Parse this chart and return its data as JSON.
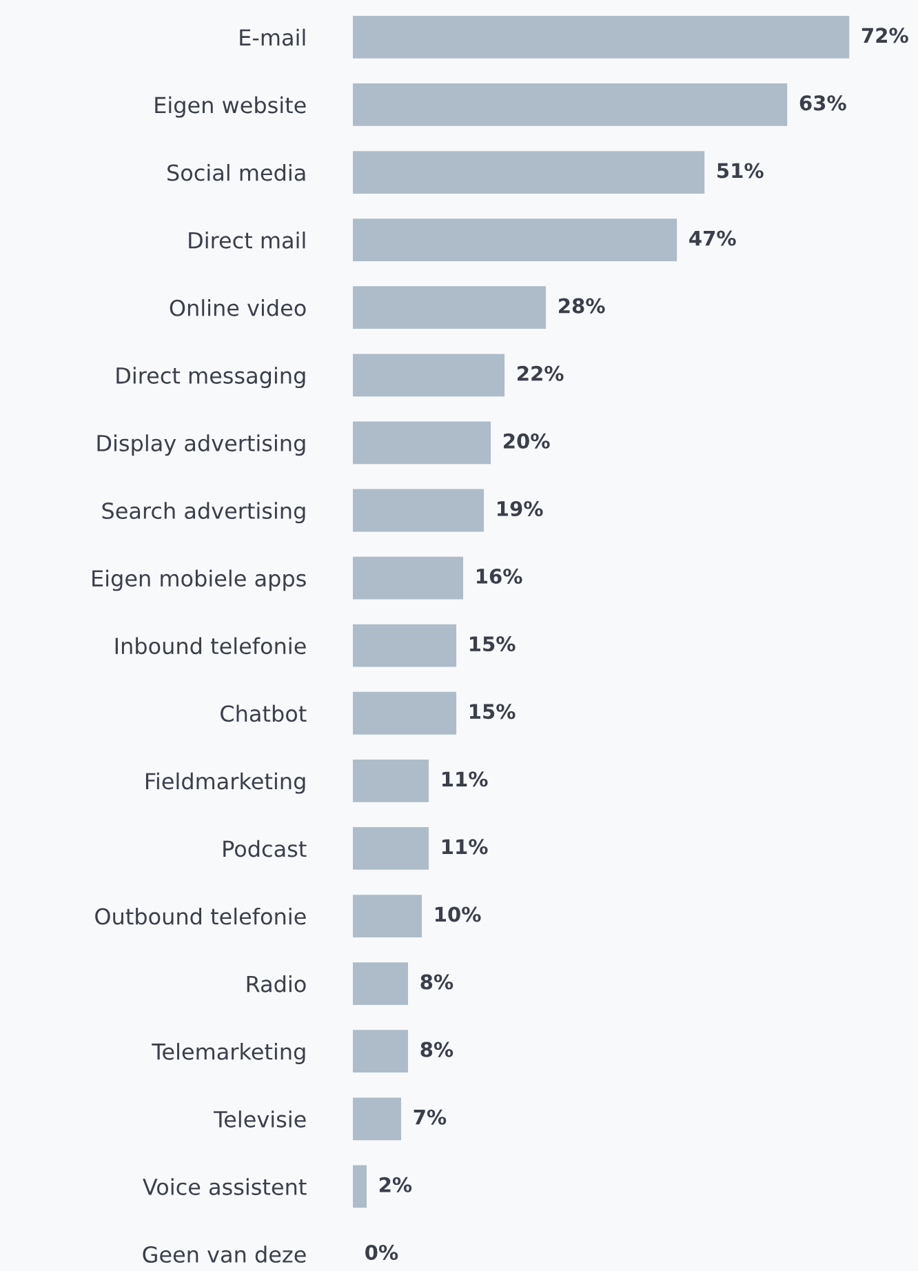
{
  "chart_data": {
    "type": "bar",
    "orientation": "horizontal",
    "categories": [
      "E-mail",
      "Eigen website",
      "Social media",
      "Direct mail",
      "Online video",
      "Direct messaging",
      "Display advertising",
      "Search advertising",
      "Eigen mobiele apps",
      "Inbound telefonie",
      "Chatbot",
      "Fieldmarketing",
      "Podcast",
      "Outbound telefonie",
      "Radio",
      "Telemarketing",
      "Televisie",
      "Voice assistent",
      "Geen van deze"
    ],
    "values": [
      72,
      63,
      51,
      47,
      28,
      22,
      20,
      19,
      16,
      15,
      15,
      11,
      11,
      10,
      8,
      8,
      7,
      2,
      0
    ],
    "value_labels": [
      "72%",
      "63%",
      "51%",
      "47%",
      "28%",
      "22%",
      "20%",
      "19%",
      "16%",
      "15%",
      "15%",
      "11%",
      "11%",
      "10%",
      "8%",
      "8%",
      "7%",
      "2%",
      "0%"
    ],
    "color": "#adbcc8",
    "grid": false,
    "legend": false
  }
}
